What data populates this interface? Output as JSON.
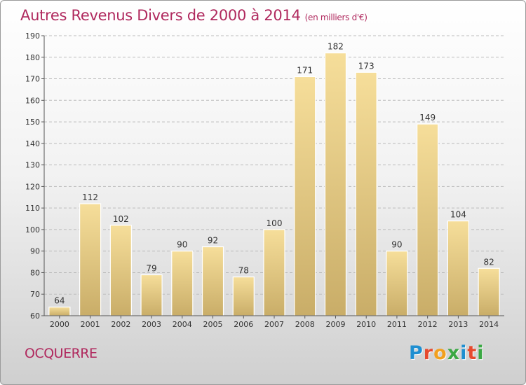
{
  "page": {
    "title": "Autres Revenus Divers de 2000 à 2014",
    "subtitle": "(en milliers d'€)",
    "commune": "OCQUERRE",
    "brand": {
      "text": "Proxiti",
      "letters": [
        {
          "char": "P",
          "color": "#1f8fd1"
        },
        {
          "char": "r",
          "color": "#e64a2e"
        },
        {
          "char": "o",
          "color": "#f2a01e"
        },
        {
          "char": "x",
          "color": "#3aa843"
        },
        {
          "char": "i",
          "color": "#1f8fd1"
        },
        {
          "char": "t",
          "color": "#e64a2e"
        },
        {
          "char": "i",
          "color": "#3aa843"
        }
      ]
    }
  },
  "colors": {
    "title": "#b0295e",
    "bar_top": "#f6de9a",
    "bar_bottom": "#c9ad68",
    "axis": "#555555",
    "grid": "#bbbbbb",
    "label": "#333333"
  },
  "chart_data": {
    "type": "bar",
    "title": "Autres Revenus Divers de 2000 à 2014",
    "subtitle": "(en milliers d'€)",
    "xlabel": "",
    "ylabel": "",
    "categories": [
      "2000",
      "2001",
      "2002",
      "2003",
      "2004",
      "2005",
      "2006",
      "2007",
      "2008",
      "2009",
      "2010",
      "2011",
      "2012",
      "2013",
      "2014"
    ],
    "values": [
      64,
      112,
      102,
      79,
      90,
      92,
      78,
      100,
      171,
      182,
      173,
      90,
      149,
      104,
      82
    ],
    "ylim": [
      60,
      190
    ],
    "yticks": [
      60,
      70,
      80,
      90,
      100,
      110,
      120,
      130,
      140,
      150,
      160,
      170,
      180,
      190
    ],
    "grid": "horizontal-dashed",
    "data_labels": true
  }
}
